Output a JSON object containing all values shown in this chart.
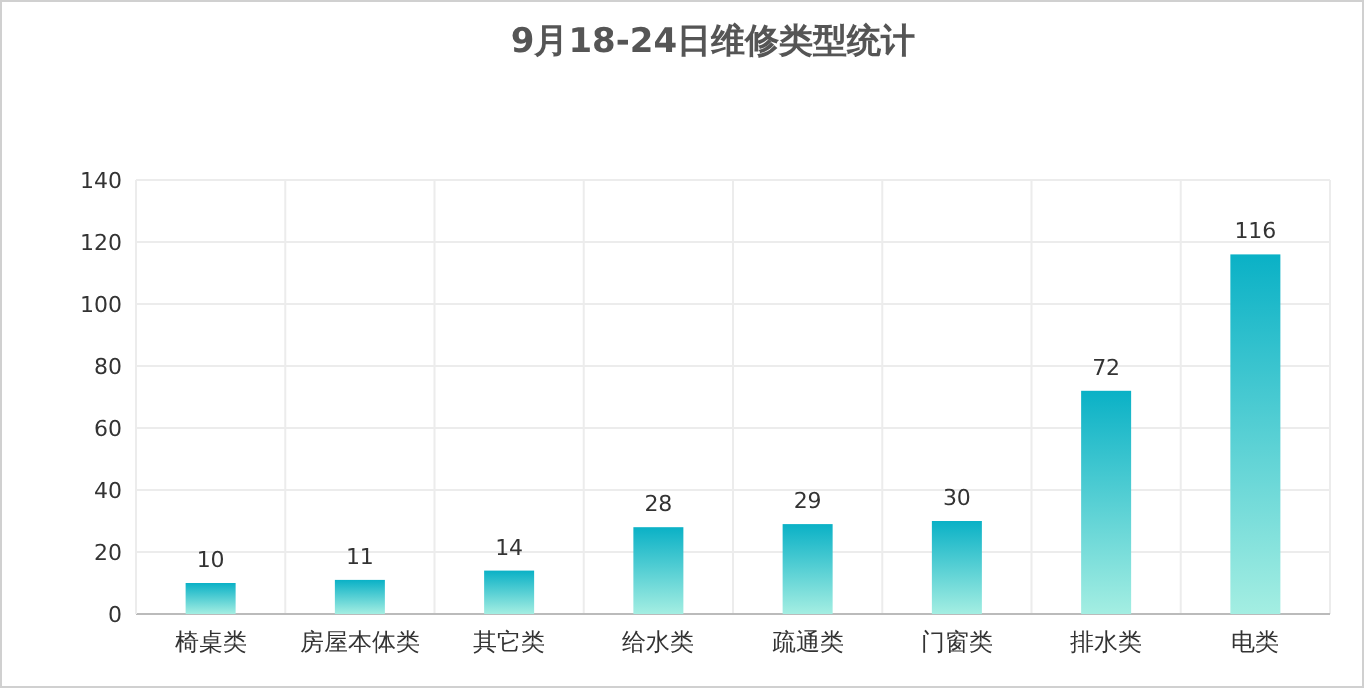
{
  "chart_data": {
    "type": "bar",
    "title": "9月18-24日维修类型统计",
    "categories": [
      "椅桌类",
      "房屋本体类",
      "其它类",
      "给水类",
      "疏通类",
      "门窗类",
      "排水类",
      "电类"
    ],
    "values": [
      10,
      11,
      14,
      28,
      29,
      30,
      72,
      116
    ],
    "color": "#0ab1c6",
    "ylim": [
      0,
      140
    ],
    "yticks": [
      0,
      20,
      40,
      60,
      80,
      100,
      120,
      140
    ],
    "grid": true,
    "data_labels": true
  }
}
